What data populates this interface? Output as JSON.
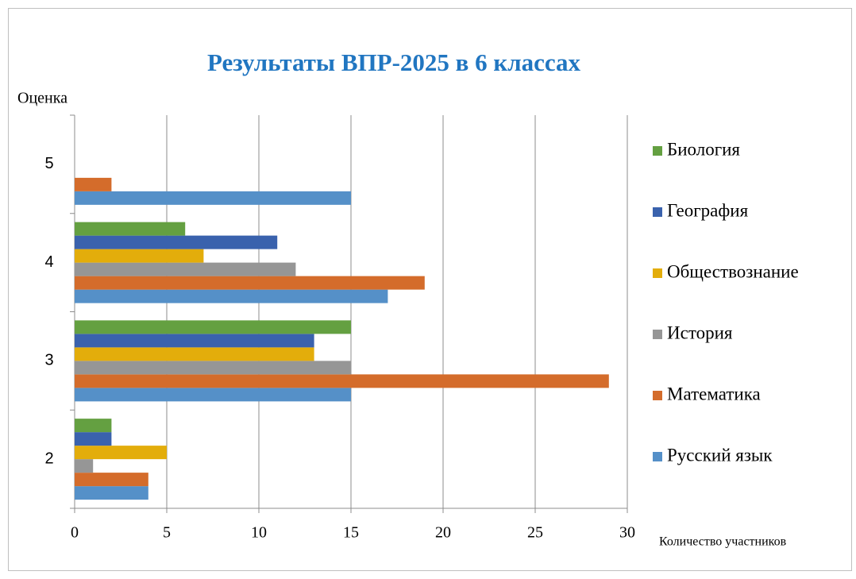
{
  "chart_data": {
    "type": "barh",
    "title": "Результаты ВПР-2025 в 6 классах",
    "y_label": "Оценка",
    "x_label": "Количество участников",
    "categories": [
      "2",
      "3",
      "4",
      "5"
    ],
    "series": [
      {
        "name": "Русский язык",
        "color": "#5590c8",
        "values": [
          4,
          15,
          17,
          15
        ]
      },
      {
        "name": "Математика",
        "color": "#d46c2b",
        "values": [
          4,
          29,
          19,
          2
        ]
      },
      {
        "name": "История",
        "color": "#969696",
        "values": [
          1,
          15,
          12,
          0
        ]
      },
      {
        "name": "Обществознание",
        "color": "#e3ad0b",
        "values": [
          5,
          13,
          7,
          0
        ]
      },
      {
        "name": "География",
        "color": "#3a62ad",
        "values": [
          2,
          13,
          11,
          0
        ]
      },
      {
        "name": "Биология",
        "color": "#64a041",
        "values": [
          2,
          15,
          6,
          0
        ]
      }
    ],
    "xlim": [
      0,
      30
    ],
    "xticks": [
      0,
      5,
      10,
      15,
      20,
      25,
      30
    ],
    "grid": true,
    "legend": "right"
  }
}
